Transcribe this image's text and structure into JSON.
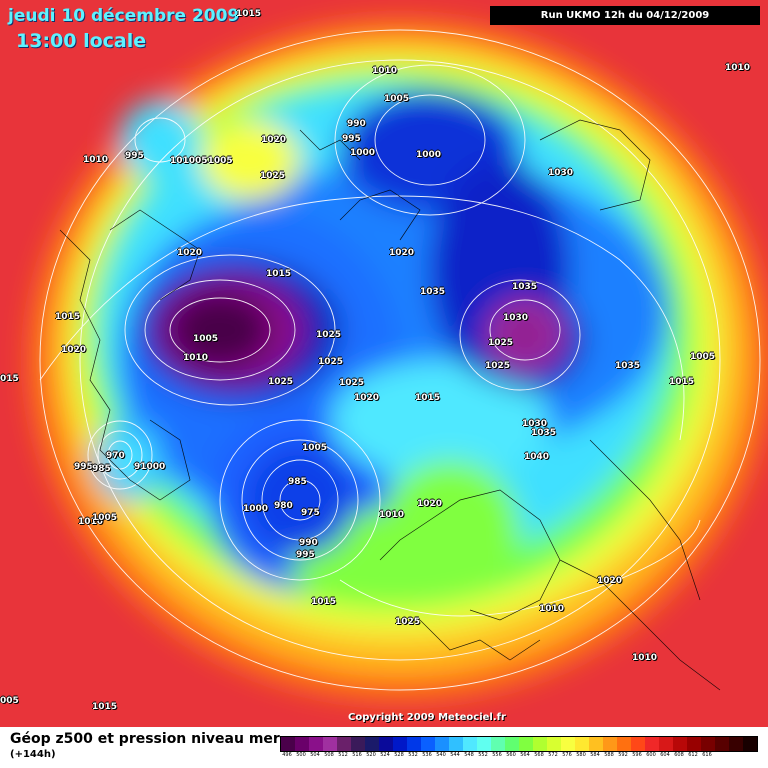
{
  "header": {
    "date": "jeudi 10 décembre 2009",
    "time": "13:00 locale",
    "run": "Run UKMO 12h du 04/12/2009"
  },
  "map": {
    "isobar_labels": [
      {
        "text": "1015"
      },
      {
        "text": "1010"
      },
      {
        "text": "1010"
      },
      {
        "text": "1005"
      },
      {
        "text": "990"
      },
      {
        "text": "995"
      },
      {
        "text": "1000"
      },
      {
        "text": "1000"
      },
      {
        "text": "1020"
      },
      {
        "text": "1025"
      },
      {
        "text": "1010"
      },
      {
        "text": "995"
      },
      {
        "text": "1010051005"
      },
      {
        "text": "1030"
      },
      {
        "text": "1020"
      },
      {
        "text": "1020"
      },
      {
        "text": "1015"
      },
      {
        "text": "1035"
      },
      {
        "text": "1035"
      },
      {
        "text": "1030"
      },
      {
        "text": "1025"
      },
      {
        "text": "1025"
      },
      {
        "text": "1015"
      },
      {
        "text": "1020"
      },
      {
        "text": "1005"
      },
      {
        "text": "1010"
      },
      {
        "text": "1025"
      },
      {
        "text": "1025"
      },
      {
        "text": "1025"
      },
      {
        "text": "1025"
      },
      {
        "text": "1020"
      },
      {
        "text": "1015"
      },
      {
        "text": "1035"
      },
      {
        "text": "1005"
      },
      {
        "text": "1015"
      },
      {
        "text": "1030"
      },
      {
        "text": "1035"
      },
      {
        "text": "1040"
      },
      {
        "text": "015"
      },
      {
        "text": "970"
      },
      {
        "text": "995"
      },
      {
        "text": "985"
      },
      {
        "text": "91000"
      },
      {
        "text": "1005"
      },
      {
        "text": "985"
      },
      {
        "text": "980"
      },
      {
        "text": "975"
      },
      {
        "text": "1000"
      },
      {
        "text": "990"
      },
      {
        "text": "995"
      },
      {
        "text": "1010"
      },
      {
        "text": "1020"
      },
      {
        "text": "1010"
      },
      {
        "text": "1005"
      },
      {
        "text": "1015"
      },
      {
        "text": "1025"
      },
      {
        "text": "1020"
      },
      {
        "text": "1010"
      },
      {
        "text": "1010"
      },
      {
        "text": "005"
      },
      {
        "text": "1015"
      }
    ]
  },
  "copyright": "Copyright 2009 Meteociel.fr",
  "footer": {
    "title": "Géop z500 et pression niveau mer",
    "subtitle": "(+144h)",
    "scale_colors": [
      "#4a004a",
      "#6a006a",
      "#8a108a",
      "#a030a0",
      "#6a206a",
      "#3a1a5a",
      "#1a1a6a",
      "#0a0a9a",
      "#0018c8",
      "#0038e8",
      "#0a60ff",
      "#1a90ff",
      "#30c0ff",
      "#50e8ff",
      "#60fff0",
      "#60ffb0",
      "#60ff70",
      "#80ff40",
      "#b0ff30",
      "#d8ff30",
      "#f8ff40",
      "#ffe830",
      "#ffc020",
      "#ff9818",
      "#ff7010",
      "#ff4818",
      "#f02828",
      "#d81818",
      "#b80808",
      "#980000",
      "#780000",
      "#580000",
      "#380000",
      "#180000"
    ],
    "scale_ticks": [
      "496",
      "500",
      "504",
      "508",
      "512",
      "516",
      "520",
      "524",
      "528",
      "532",
      "536",
      "540",
      "544",
      "548",
      "552",
      "556",
      "560",
      "564",
      "568",
      "572",
      "576",
      "580",
      "584",
      "588",
      "592",
      "596",
      "600",
      "604",
      "608",
      "612",
      "616",
      "",
      "",
      ""
    ]
  }
}
